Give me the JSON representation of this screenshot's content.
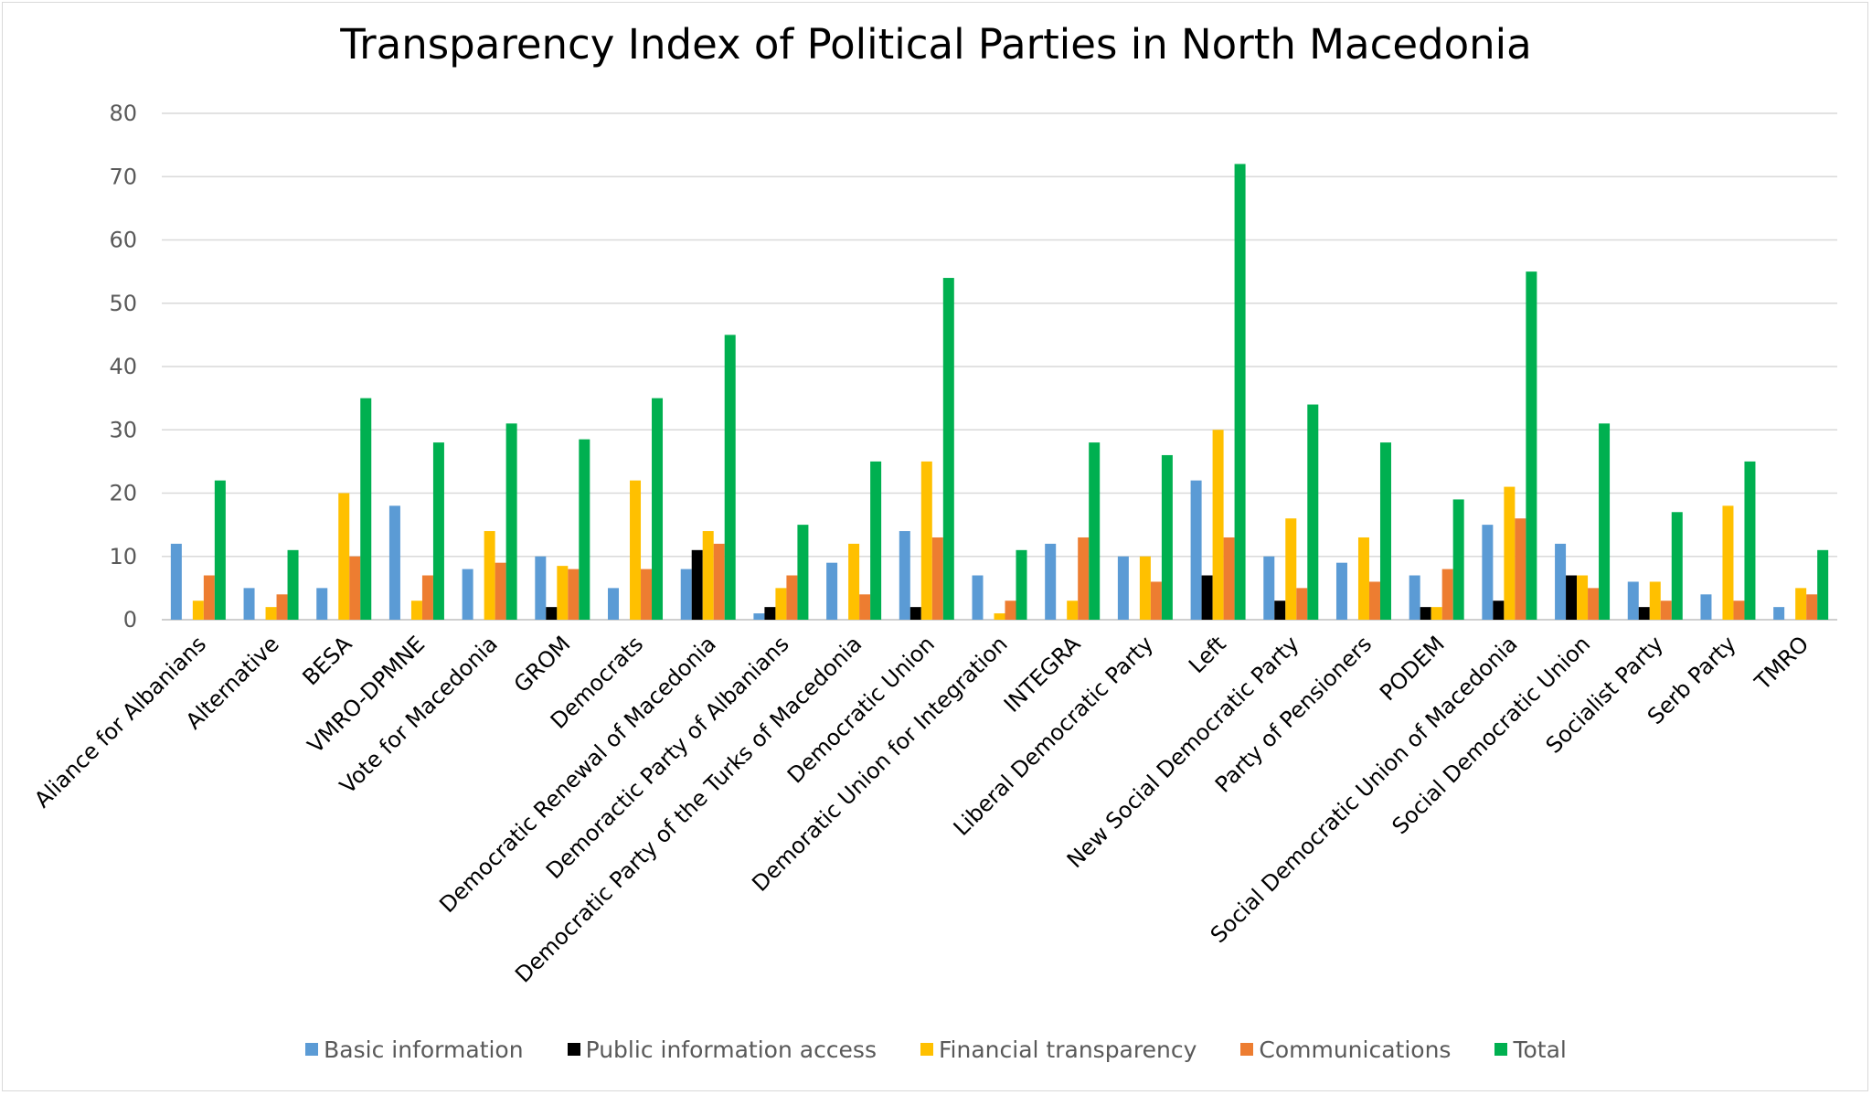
{
  "chart_data": {
    "type": "bar",
    "title": "Transparency Index of Political Parties in North Macedonia",
    "ylim": [
      0,
      80
    ],
    "yticks": [
      0,
      10,
      20,
      30,
      40,
      50,
      60,
      70,
      80
    ],
    "grid": true,
    "legend_position": "bottom",
    "categories": [
      "Aliance for Albanians",
      "Alternative",
      "BESA",
      "VMRO-DPMNE",
      "Vote for Macedonia",
      "GROM",
      "Democrats",
      "Democratic Renewal of Macedonia",
      "Demoractic Party of Albanians",
      "Democratic Party of the Turks of Macedonia",
      "Democratic Union",
      "Demoratic Union for Integration",
      "INTEGRA",
      "Liberal Democratic Party",
      "Left",
      "New Social Democratic Party",
      "Party of Pensioners",
      "PODEM",
      "Social Democratic Union of Macedonia",
      "Social Democratic Union",
      "Socialist Party",
      "Serb Party",
      "TMRO"
    ],
    "series": [
      {
        "name": "Basic information",
        "color": "#5b9bd5",
        "values": [
          12,
          5,
          5,
          18,
          8,
          10,
          5,
          8,
          1,
          9,
          14,
          7,
          12,
          10,
          22,
          10,
          9,
          7,
          15,
          12,
          6,
          4,
          2
        ]
      },
      {
        "name": "Public information access",
        "color": "#000000",
        "values": [
          0,
          0,
          0,
          0,
          0,
          2,
          0,
          11,
          2,
          0,
          2,
          0,
          0,
          0,
          7,
          3,
          0,
          2,
          3,
          7,
          2,
          0,
          0
        ]
      },
      {
        "name": "Financial transparency",
        "color": "#ffc000",
        "values": [
          3,
          2,
          20,
          3,
          14,
          8.5,
          22,
          14,
          5,
          12,
          25,
          1,
          3,
          10,
          30,
          16,
          13,
          2,
          21,
          7,
          6,
          18,
          5
        ]
      },
      {
        "name": "Communications",
        "color": "#ed7d31",
        "values": [
          7,
          4,
          10,
          7,
          9,
          8,
          8,
          12,
          7,
          4,
          13,
          3,
          13,
          6,
          13,
          5,
          6,
          8,
          16,
          5,
          3,
          3,
          4
        ]
      },
      {
        "name": "Total",
        "color": "#00b050",
        "values": [
          22,
          11,
          35,
          28,
          31,
          28.5,
          35,
          45,
          15,
          25,
          54,
          11,
          28,
          26,
          72,
          34,
          28,
          19,
          55,
          31,
          17,
          25,
          11
        ]
      }
    ]
  }
}
